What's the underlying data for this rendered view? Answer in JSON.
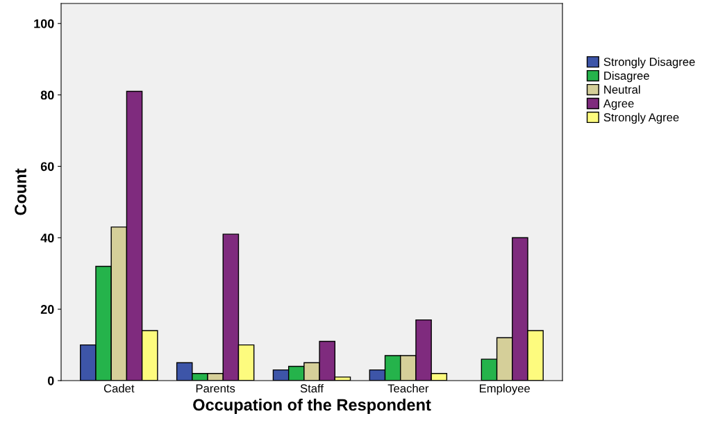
{
  "chart_data": {
    "type": "bar",
    "xlabel": "Occupation of the Respondent",
    "ylabel": "Count",
    "categories": [
      "Cadet",
      "Parents",
      "Staff",
      "Teacher",
      "Employee"
    ],
    "series": [
      {
        "name": "Strongly Disagree",
        "color": "#3d55a8",
        "values": [
          10,
          5,
          3,
          3,
          null
        ]
      },
      {
        "name": "Disagree",
        "color": "#25b34b",
        "values": [
          32,
          2,
          4,
          7,
          6
        ]
      },
      {
        "name": "Neutral",
        "color": "#d5cf99",
        "values": [
          43,
          2,
          5,
          7,
          12
        ]
      },
      {
        "name": "Agree",
        "color": "#7f2b7e",
        "values": [
          81,
          41,
          11,
          17,
          40
        ]
      },
      {
        "name": "Strongly Agree",
        "color": "#fdfb7e",
        "values": [
          14,
          10,
          1,
          2,
          14
        ]
      }
    ],
    "ylim": [
      0,
      105.6
    ],
    "yticks": [
      0,
      20,
      40,
      60,
      80,
      100
    ],
    "grid": false,
    "legend": "right"
  }
}
